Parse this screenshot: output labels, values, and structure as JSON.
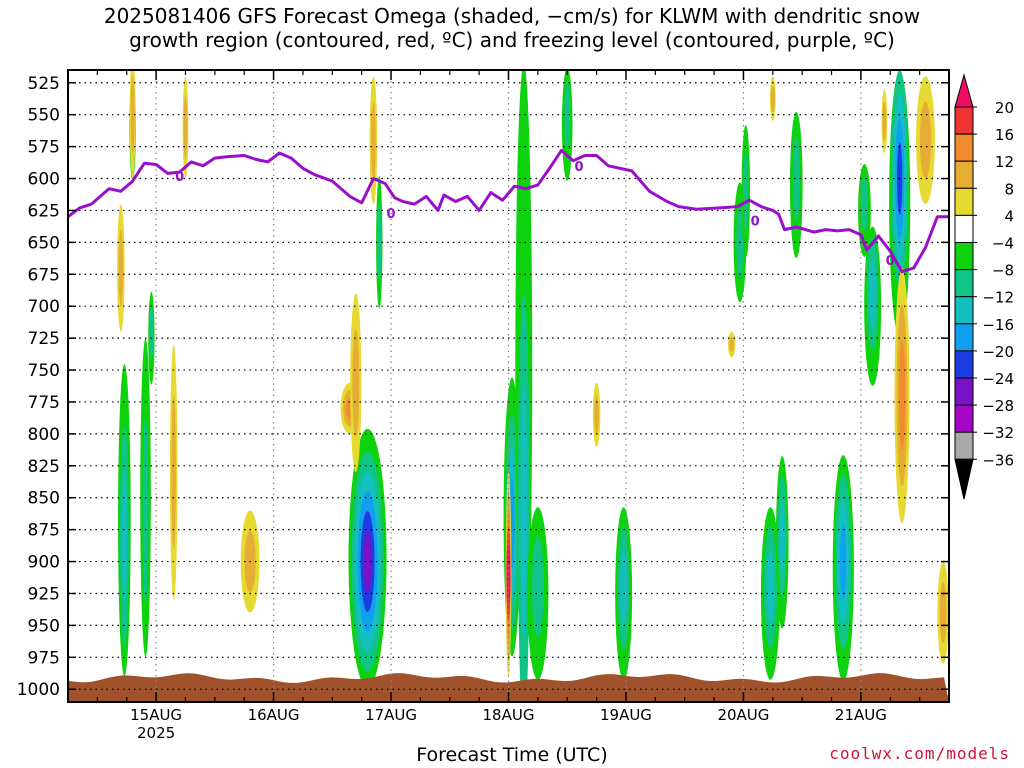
{
  "title_line1": "2025081406 GFS Forecast Omega (shaded, −cm/s) for KLWM with dendritic snow",
  "title_line2": "growth region (contoured, red, ºC) and freezing level (contoured, purple, ºC)",
  "credit": "coolwx.com/models",
  "chart_data": {
    "type": "heatmap",
    "xlabel": "Forecast Time (UTC)",
    "x_ticks": [
      {
        "t": 0.75,
        "label": "15AUG",
        "sub": "2025"
      },
      {
        "t": 1.75,
        "label": "16AUG",
        "sub": ""
      },
      {
        "t": 2.75,
        "label": "17AUG",
        "sub": ""
      },
      {
        "t": 3.75,
        "label": "18AUG",
        "sub": ""
      },
      {
        "t": 4.75,
        "label": "19AUG",
        "sub": ""
      },
      {
        "t": 5.75,
        "label": "20AUG",
        "sub": ""
      },
      {
        "t": 6.75,
        "label": "21AUG",
        "sub": ""
      }
    ],
    "x_minor_ticks": [
      0.25,
      0.5,
      1.0,
      1.25,
      1.5,
      2.0,
      2.25,
      2.5,
      3.0,
      3.25,
      3.5,
      4.0,
      4.25,
      4.5,
      5.0,
      5.25,
      5.5,
      6.0,
      6.25,
      6.5,
      7.0,
      7.25,
      7.5
    ],
    "xlim": [
      0,
      7.5
    ],
    "y_ticks": [
      525,
      550,
      575,
      600,
      625,
      650,
      675,
      700,
      725,
      750,
      775,
      800,
      825,
      850,
      875,
      900,
      925,
      950,
      975,
      1000
    ],
    "ylim": [
      1010,
      515
    ],
    "colorbar": {
      "labels": [
        "20",
        "16",
        "12",
        "8",
        "4",
        "−4",
        "−8",
        "−12",
        "−16",
        "−20",
        "−24",
        "−28",
        "−32",
        "−36"
      ],
      "colors": [
        "#f00e64",
        "#ef3434",
        "#f28a2e",
        "#e6ad35",
        "#e6d931",
        "#ffffff",
        "#0ed20e",
        "#10c487",
        "#13c0c0",
        "#139ff0",
        "#1d3ce2",
        "#7a10c8",
        "#a706c8",
        "#a9a9a9",
        "#000000"
      ]
    },
    "freezing_level": {
      "label": "0",
      "color": "#9a0fcc",
      "label_points": [
        [
          0.95,
          598
        ],
        [
          2.75,
          627
        ],
        [
          4.35,
          590
        ],
        [
          5.85,
          633
        ],
        [
          7.0,
          664
        ]
      ],
      "points": [
        [
          0.0,
          630
        ],
        [
          0.1,
          623
        ],
        [
          0.2,
          620
        ],
        [
          0.3,
          612
        ],
        [
          0.35,
          608
        ],
        [
          0.45,
          610
        ],
        [
          0.55,
          602
        ],
        [
          0.65,
          588
        ],
        [
          0.75,
          589
        ],
        [
          0.85,
          596
        ],
        [
          0.95,
          595
        ],
        [
          1.05,
          587
        ],
        [
          1.15,
          590
        ],
        [
          1.25,
          584
        ],
        [
          1.35,
          583
        ],
        [
          1.5,
          582
        ],
        [
          1.6,
          585
        ],
        [
          1.7,
          587
        ],
        [
          1.8,
          580
        ],
        [
          1.9,
          584
        ],
        [
          2.0,
          592
        ],
        [
          2.1,
          597
        ],
        [
          2.25,
          602
        ],
        [
          2.4,
          614
        ],
        [
          2.5,
          619
        ],
        [
          2.6,
          600
        ],
        [
          2.7,
          604
        ],
        [
          2.78,
          615
        ],
        [
          2.85,
          618
        ],
        [
          2.95,
          620
        ],
        [
          3.05,
          614
        ],
        [
          3.15,
          625
        ],
        [
          3.2,
          613
        ],
        [
          3.3,
          618
        ],
        [
          3.4,
          614
        ],
        [
          3.5,
          625
        ],
        [
          3.6,
          611
        ],
        [
          3.7,
          617
        ],
        [
          3.8,
          606
        ],
        [
          3.9,
          608
        ],
        [
          4.0,
          605
        ],
        [
          4.1,
          592
        ],
        [
          4.2,
          578
        ],
        [
          4.3,
          586
        ],
        [
          4.4,
          582
        ],
        [
          4.5,
          582
        ],
        [
          4.6,
          590
        ],
        [
          4.8,
          594
        ],
        [
          4.95,
          610
        ],
        [
          5.1,
          618
        ],
        [
          5.2,
          622
        ],
        [
          5.35,
          624
        ],
        [
          5.55,
          623
        ],
        [
          5.7,
          622
        ],
        [
          5.8,
          617
        ],
        [
          5.9,
          622
        ],
        [
          6.0,
          625
        ],
        [
          6.05,
          628
        ],
        [
          6.1,
          640
        ],
        [
          6.2,
          638
        ],
        [
          6.35,
          642
        ],
        [
          6.45,
          640
        ],
        [
          6.55,
          641
        ],
        [
          6.65,
          640
        ],
        [
          6.75,
          644
        ],
        [
          6.8,
          656
        ],
        [
          6.9,
          645
        ],
        [
          7.0,
          657
        ],
        [
          7.1,
          673
        ],
        [
          7.2,
          670
        ],
        [
          7.3,
          654
        ],
        [
          7.4,
          630
        ],
        [
          7.5,
          630
        ]
      ]
    },
    "omega_blobs": [
      {
        "t": 0.48,
        "p1": 750,
        "p2": 985,
        "w": 0.06,
        "core": 880,
        "level": 2
      },
      {
        "t": 0.55,
        "p1": 520,
        "p2": 600,
        "w": 0.03,
        "core": 560,
        "level": 1
      },
      {
        "t": 0.66,
        "p1": 730,
        "p2": 970,
        "w": 0.05,
        "core": 860,
        "level": 1
      },
      {
        "t": 0.71,
        "p1": 690,
        "p2": 760,
        "w": 0.03,
        "core": 720,
        "level": 1
      },
      {
        "t": 2.55,
        "p1": 800,
        "p2": 995,
        "w": 0.18,
        "core": 900,
        "level": 5
      },
      {
        "t": 2.65,
        "p1": 600,
        "p2": 700,
        "w": 0.03,
        "core": 650,
        "level": 1
      },
      {
        "t": 3.78,
        "p1": 760,
        "p2": 970,
        "w": 0.08,
        "core": 870,
        "level": 3
      },
      {
        "t": 3.88,
        "p1": 520,
        "p2": 980,
        "w": 0.08,
        "core": 860,
        "level": 2
      },
      {
        "t": 4.0,
        "p1": 860,
        "p2": 990,
        "w": 0.1,
        "core": 920,
        "level": 1
      },
      {
        "t": 4.25,
        "p1": 515,
        "p2": 600,
        "w": 0.05,
        "core": 550,
        "level": 1
      },
      {
        "t": 4.73,
        "p1": 860,
        "p2": 990,
        "w": 0.08,
        "core": 920,
        "level": 2
      },
      {
        "t": 5.72,
        "p1": 605,
        "p2": 695,
        "w": 0.06,
        "core": 650,
        "level": 1
      },
      {
        "t": 5.77,
        "p1": 560,
        "p2": 660,
        "w": 0.04,
        "core": 610,
        "level": 1
      },
      {
        "t": 5.98,
        "p1": 860,
        "p2": 990,
        "w": 0.09,
        "core": 920,
        "level": 2
      },
      {
        "t": 6.08,
        "p1": 820,
        "p2": 950,
        "w": 0.06,
        "core": 880,
        "level": 2
      },
      {
        "t": 6.2,
        "p1": 550,
        "p2": 660,
        "w": 0.06,
        "core": 600,
        "level": 1
      },
      {
        "t": 6.6,
        "p1": 820,
        "p2": 990,
        "w": 0.1,
        "core": 900,
        "level": 3
      },
      {
        "t": 6.78,
        "p1": 590,
        "p2": 660,
        "w": 0.06,
        "core": 620,
        "level": 1
      },
      {
        "t": 6.85,
        "p1": 640,
        "p2": 760,
        "w": 0.08,
        "core": 690,
        "level": 2
      },
      {
        "t": 7.08,
        "p1": 520,
        "p2": 720,
        "w": 0.1,
        "core": 600,
        "level": 4
      }
    ],
    "sinking_blobs": [
      {
        "t": 0.45,
        "p1": 620,
        "p2": 720,
        "w": 0.04,
        "level": 1
      },
      {
        "t": 0.55,
        "p1": 500,
        "p2": 600,
        "w": 0.03,
        "level": 1
      },
      {
        "t": 0.9,
        "p1": 730,
        "p2": 930,
        "w": 0.04,
        "level": 1
      },
      {
        "t": 1.0,
        "p1": 520,
        "p2": 600,
        "w": 0.03,
        "level": 1
      },
      {
        "t": 1.55,
        "p1": 860,
        "p2": 940,
        "w": 0.1,
        "level": 1
      },
      {
        "t": 2.4,
        "p1": 760,
        "p2": 800,
        "w": 0.1,
        "level": 2
      },
      {
        "t": 2.45,
        "p1": 690,
        "p2": 830,
        "w": 0.06,
        "level": 1
      },
      {
        "t": 2.6,
        "p1": 520,
        "p2": 620,
        "w": 0.04,
        "level": 1
      },
      {
        "t": 3.75,
        "p1": 830,
        "p2": 990,
        "w": 0.03,
        "level": 4
      },
      {
        "t": 4.5,
        "p1": 760,
        "p2": 810,
        "w": 0.04,
        "level": 1
      },
      {
        "t": 7.1,
        "p1": 670,
        "p2": 870,
        "w": 0.08,
        "level": 2
      },
      {
        "t": 7.3,
        "p1": 520,
        "p2": 620,
        "w": 0.1,
        "level": 1
      },
      {
        "t": 7.45,
        "p1": 900,
        "p2": 980,
        "w": 0.06,
        "level": 1
      },
      {
        "t": 6.95,
        "p1": 530,
        "p2": 580,
        "w": 0.03,
        "level": 1
      },
      {
        "t": 6.0,
        "p1": 520,
        "p2": 555,
        "w": 0.03,
        "level": 1
      },
      {
        "t": 5.65,
        "p1": 720,
        "p2": 740,
        "w": 0.04,
        "level": 1
      }
    ]
  }
}
